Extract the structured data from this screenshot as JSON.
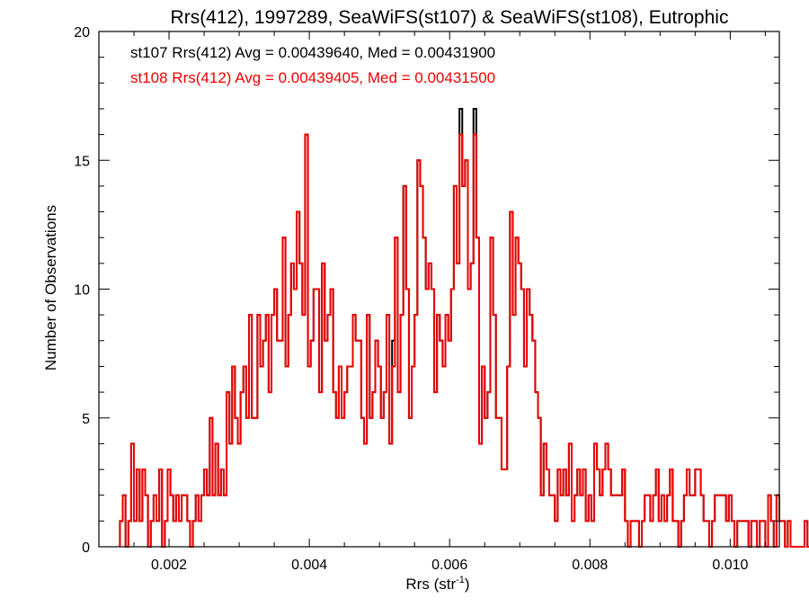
{
  "chart_data": {
    "type": "histogram",
    "title": "Rrs(412), 1997289, SeaWiFS(st107) & SeaWiFS(st108), Eutrophic",
    "xlabel_main": "Rrs (str",
    "xlabel_sup": "-1",
    "xlabel_close": ")",
    "ylabel": "Number of Observations",
    "xlim": [
      0.001,
      0.0107
    ],
    "ylim": [
      0,
      20
    ],
    "x_ticks": [
      0.002,
      0.004,
      0.006,
      0.008,
      0.01
    ],
    "x_tick_labels": [
      "0.002",
      "0.004",
      "0.006",
      "0.008",
      "0.010"
    ],
    "y_ticks": [
      0,
      5,
      10,
      15,
      20
    ],
    "y_tick_labels": [
      "0",
      "5",
      "10",
      "15",
      "20"
    ],
    "bin_width": 4e-05,
    "grid": false,
    "annotations": [
      {
        "text": "st107 Rrs(412) Avg = 0.00439640, Med = 0.00431900",
        "color": "#000000"
      },
      {
        "text": "st108 Rrs(412) Avg = 0.00439405, Med = 0.00431500",
        "color": "#ee0000"
      }
    ],
    "series": [
      {
        "name": "st107",
        "color": "#000000",
        "x_start": 0.0013,
        "counts": [
          1,
          2,
          0,
          1,
          4,
          1,
          3,
          1,
          3,
          2,
          0,
          1,
          2,
          1,
          3,
          0,
          1,
          3,
          2,
          1,
          2,
          1,
          2,
          2,
          1,
          0,
          1,
          2,
          1,
          2,
          3,
          2,
          5,
          2,
          4,
          2,
          3,
          2,
          6,
          4,
          7,
          5,
          4,
          6,
          7,
          5,
          9,
          5,
          5,
          9,
          7,
          8,
          9,
          6,
          9,
          10,
          8,
          8,
          12,
          7,
          9,
          11,
          10,
          13,
          11,
          9,
          16,
          7,
          8,
          10,
          10,
          6,
          11,
          8,
          9,
          10,
          6,
          5,
          7,
          5,
          6,
          7,
          7,
          9,
          8,
          8,
          5,
          4,
          9,
          5,
          6,
          8,
          7,
          5,
          6,
          9,
          4,
          8,
          12,
          6,
          9,
          14,
          10,
          5,
          7,
          9,
          15,
          14,
          12,
          10,
          11,
          10,
          6,
          9,
          8,
          7,
          9,
          8,
          10,
          14,
          11,
          17,
          14,
          15,
          10,
          11,
          17,
          12,
          4,
          7,
          5,
          6,
          12,
          9,
          5,
          5,
          3,
          3,
          7,
          13,
          9,
          12,
          11,
          10,
          7,
          10,
          9,
          8,
          6,
          5,
          2,
          4,
          3,
          2,
          2,
          1,
          3,
          2,
          3,
          2,
          4,
          1,
          2,
          3,
          2,
          3,
          1,
          2,
          1,
          4,
          3,
          2,
          3,
          4,
          3,
          2,
          2,
          2,
          2,
          3,
          1,
          0,
          1,
          1,
          1,
          0,
          1,
          2,
          2,
          1,
          2,
          3,
          1,
          2,
          1,
          2,
          3,
          1,
          1,
          0,
          1,
          2,
          3,
          2,
          2,
          3,
          3,
          2,
          1,
          1,
          0,
          1,
          2,
          2,
          2,
          2,
          1,
          2,
          1,
          0,
          1,
          1,
          1,
          1,
          0,
          1,
          1,
          0,
          1,
          1,
          0,
          2,
          1,
          0,
          2,
          1,
          1,
          0,
          1,
          0,
          0,
          0,
          0,
          0,
          1,
          0,
          0,
          0
        ]
      },
      {
        "name": "st108",
        "color": "#ee0000",
        "x_start": 0.0013,
        "counts": [
          1,
          2,
          0,
          1,
          4,
          1,
          3,
          1,
          3,
          2,
          0,
          1,
          2,
          1,
          3,
          0,
          1,
          3,
          2,
          1,
          2,
          1,
          2,
          2,
          1,
          0,
          1,
          2,
          1,
          2,
          3,
          2,
          5,
          2,
          4,
          2,
          3,
          2,
          6,
          4,
          7,
          5,
          4,
          6,
          7,
          5,
          9,
          5,
          5,
          9,
          7,
          8,
          9,
          6,
          9,
          10,
          8,
          8,
          12,
          7,
          9,
          11,
          10,
          13,
          11,
          9,
          16,
          7,
          8,
          10,
          10,
          6,
          11,
          8,
          9,
          10,
          6,
          5,
          7,
          5,
          6,
          7,
          7,
          9,
          8,
          8,
          5,
          4,
          9,
          5,
          6,
          8,
          7,
          5,
          6,
          9,
          4,
          7,
          12,
          6,
          9,
          14,
          10,
          5,
          7,
          9,
          15,
          14,
          12,
          10,
          11,
          10,
          6,
          9,
          8,
          7,
          9,
          8,
          10,
          14,
          11,
          16,
          14,
          15,
          10,
          11,
          16,
          12,
          4,
          7,
          5,
          6,
          12,
          9,
          5,
          5,
          3,
          3,
          7,
          13,
          9,
          12,
          11,
          10,
          7,
          10,
          9,
          8,
          6,
          5,
          2,
          4,
          3,
          2,
          2,
          1,
          3,
          2,
          3,
          2,
          4,
          1,
          2,
          3,
          2,
          3,
          1,
          2,
          1,
          4,
          3,
          2,
          3,
          4,
          3,
          2,
          2,
          2,
          2,
          3,
          1,
          0,
          1,
          1,
          1,
          0,
          1,
          2,
          2,
          1,
          2,
          3,
          1,
          2,
          1,
          2,
          3,
          1,
          1,
          0,
          1,
          2,
          3,
          2,
          2,
          3,
          3,
          2,
          1,
          1,
          0,
          1,
          2,
          2,
          2,
          2,
          1,
          2,
          1,
          0,
          1,
          1,
          1,
          1,
          0,
          1,
          1,
          0,
          1,
          1,
          0,
          2,
          1,
          0,
          2,
          1,
          1,
          0,
          1,
          0,
          0,
          0,
          0,
          0,
          1,
          0,
          0,
          0
        ]
      }
    ]
  }
}
